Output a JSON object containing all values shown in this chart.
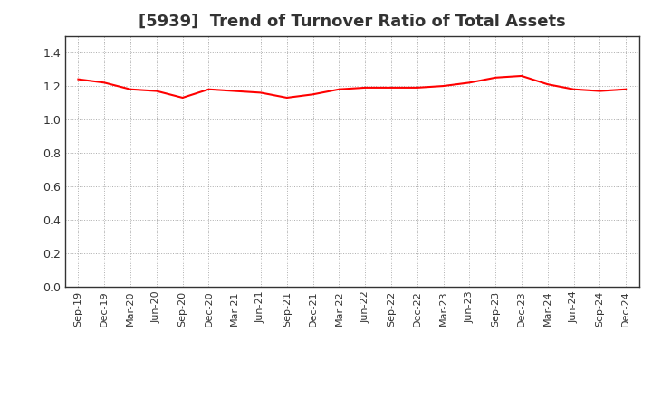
{
  "title": "[5939]  Trend of Turnover Ratio of Total Assets",
  "title_fontsize": 13,
  "title_color": "#333333",
  "line_color": "#FF0000",
  "line_width": 1.5,
  "background_color": "#FFFFFF",
  "grid_color": "#999999",
  "spine_color": "#333333",
  "ylim": [
    0.0,
    1.5
  ],
  "yticks": [
    0.0,
    0.2,
    0.4,
    0.6,
    0.8,
    1.0,
    1.2,
    1.4
  ],
  "x_labels": [
    "Sep-19",
    "Dec-19",
    "Mar-20",
    "Jun-20",
    "Sep-20",
    "Dec-20",
    "Mar-21",
    "Jun-21",
    "Sep-21",
    "Dec-21",
    "Mar-22",
    "Jun-22",
    "Sep-22",
    "Dec-22",
    "Mar-23",
    "Jun-23",
    "Sep-23",
    "Dec-23",
    "Mar-24",
    "Jun-24",
    "Sep-24",
    "Dec-24"
  ],
  "values": [
    1.24,
    1.22,
    1.18,
    1.17,
    1.13,
    1.18,
    1.17,
    1.16,
    1.13,
    1.15,
    1.18,
    1.19,
    1.19,
    1.19,
    1.2,
    1.22,
    1.25,
    1.26,
    1.21,
    1.18,
    1.17,
    1.18
  ]
}
